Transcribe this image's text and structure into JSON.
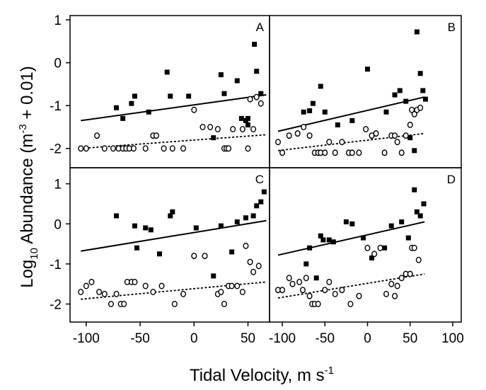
{
  "figure": {
    "xlabel": "Tidal Velocity, m s",
    "xlabel_sup": "-1",
    "ylabel_log": "Log",
    "ylabel_sub": "10",
    "ylabel_rest": " Abundance (m",
    "ylabel_sup": "-3",
    "ylabel_end": " + 0.01)",
    "x_ticks": [
      "-100",
      "-50",
      "0",
      "50",
      "100"
    ],
    "y_ticks_top": [
      "1",
      "0",
      "-1",
      "-2"
    ],
    "y_ticks_bottom": [
      "1",
      "0",
      "-1",
      "-2"
    ]
  },
  "chart_data": [
    {
      "type": "scatter",
      "panel": "A",
      "xlim": [
        -115,
        70
      ],
      "ylim": [
        -2.45,
        1.1
      ],
      "series": [
        {
          "marker": "filled-square",
          "color": "#000000",
          "x": [
            -72,
            -66,
            -58,
            -55,
            -42,
            -25,
            -22,
            -5,
            25,
            28,
            40,
            44,
            48,
            50,
            56,
            58,
            62,
            18,
            50
          ],
          "y": [
            -1.05,
            -1.3,
            -0.95,
            -0.78,
            -1.15,
            -0.22,
            -0.78,
            -0.78,
            -0.28,
            -0.72,
            -0.42,
            -1.3,
            -1.35,
            -1.3,
            0.43,
            -0.2,
            -0.72,
            -1.75,
            -1.45
          ]
        },
        {
          "marker": "open-circle",
          "color": "#000000",
          "x": [
            -105,
            -100,
            -90,
            -83,
            -75,
            -70,
            -66,
            -63,
            -60,
            -56,
            -45,
            -38,
            -35,
            -28,
            -20,
            -10,
            0,
            8,
            15,
            22,
            28,
            30,
            32,
            36,
            45,
            50,
            52,
            55,
            58,
            62
          ],
          "y": [
            -2,
            -2,
            -1.7,
            -2,
            -2,
            -2,
            -2,
            -2,
            -2,
            -2,
            -2,
            -1.7,
            -1.7,
            -2,
            -2,
            -2,
            -1.1,
            -1.5,
            -1.5,
            -1.55,
            -2,
            -2,
            -2,
            -1.55,
            -1.55,
            -2,
            -0.85,
            -1.55,
            -0.8,
            -0.95
          ]
        },
        {
          "line": "solid",
          "color": "#000000",
          "x": [
            -105,
            67
          ],
          "y": [
            -1.35,
            -0.75
          ]
        },
        {
          "line": "dotted",
          "color": "#000000",
          "x": [
            -105,
            67
          ],
          "y": [
            -2.0,
            -1.68
          ]
        }
      ]
    },
    {
      "type": "scatter",
      "panel": "B",
      "xlim": [
        -115,
        110
      ],
      "ylim": [
        -2.45,
        1.1
      ],
      "series": [
        {
          "marker": "filled-square",
          "color": "#000000",
          "x": [
            -75,
            -68,
            -64,
            -55,
            -50,
            -35,
            -18,
            0,
            22,
            32,
            38,
            45,
            50,
            55,
            58,
            62,
            65,
            68
          ],
          "y": [
            -1.15,
            -1.12,
            -0.95,
            -0.55,
            -1.15,
            -1.45,
            -1.35,
            -0.15,
            -1.15,
            -0.75,
            -0.65,
            -0.9,
            -1.75,
            -2.05,
            0.72,
            -0.25,
            -0.65,
            -0.85
          ]
        },
        {
          "marker": "open-circle",
          "color": "#000000",
          "x": [
            -105,
            -100,
            -92,
            -82,
            -75,
            -68,
            -62,
            -58,
            -55,
            -50,
            -45,
            -38,
            -30,
            -22,
            -18,
            -10,
            -2,
            5,
            10,
            20,
            28,
            32,
            35,
            40,
            45,
            50,
            52,
            55,
            58,
            62
          ],
          "y": [
            -1.85,
            -2.1,
            -1.7,
            -1.65,
            -1.5,
            -1.7,
            -2.1,
            -2.1,
            -2.1,
            -2.1,
            -1.85,
            -2.1,
            -1.85,
            -2.1,
            -2.1,
            -2.1,
            -1.55,
            -1.7,
            -1.65,
            -2.1,
            -1.7,
            -1.7,
            -1.85,
            -2.1,
            -1.7,
            -1.45,
            -1.1,
            -1.2,
            -1.1,
            -1.05
          ]
        },
        {
          "line": "solid",
          "color": "#000000",
          "x": [
            -105,
            67
          ],
          "y": [
            -1.6,
            -0.8
          ]
        },
        {
          "line": "dotted",
          "color": "#000000",
          "x": [
            -105,
            67
          ],
          "y": [
            -2.05,
            -1.65
          ]
        }
      ]
    },
    {
      "type": "scatter",
      "panel": "C",
      "xlim": [
        -115,
        70
      ],
      "ylim": [
        -2.45,
        1.4
      ],
      "series": [
        {
          "marker": "filled-square",
          "color": "#000000",
          "x": [
            -72,
            -55,
            -53,
            -45,
            -40,
            -32,
            -22,
            -20,
            2,
            18,
            25,
            35,
            40,
            48,
            55,
            58,
            62,
            65
          ],
          "y": [
            0.2,
            -0.05,
            -0.6,
            -0.1,
            -0.15,
            -0.75,
            0.2,
            0.3,
            -0.1,
            -1.3,
            -0.05,
            -0.7,
            0.05,
            0.15,
            0.2,
            0.45,
            0.55,
            0.8
          ]
        },
        {
          "marker": "open-circle",
          "color": "#000000",
          "x": [
            -105,
            -100,
            -95,
            -88,
            -83,
            -77,
            -72,
            -68,
            -65,
            -62,
            -58,
            -55,
            -45,
            -38,
            -30,
            -18,
            -10,
            0,
            10,
            22,
            25,
            28,
            32,
            35,
            40,
            45,
            48,
            52,
            55,
            60
          ],
          "y": [
            -1.7,
            -1.55,
            -1.45,
            -1.7,
            -1.75,
            -2,
            -1.75,
            -2,
            -2,
            -1.45,
            -1.45,
            -1.45,
            -1.55,
            -1.7,
            -1.55,
            -2,
            -1.75,
            -0.8,
            -0.8,
            -1.75,
            -1.7,
            -2,
            -1.55,
            -1.55,
            -1.55,
            -1.7,
            -0.55,
            -0.95,
            -1.2,
            -1.05
          ]
        },
        {
          "line": "solid",
          "color": "#000000",
          "x": [
            -105,
            67
          ],
          "y": [
            -0.68,
            0.08
          ]
        },
        {
          "line": "dotted",
          "color": "#000000",
          "x": [
            -105,
            67
          ],
          "y": [
            -1.88,
            -1.45
          ]
        }
      ]
    },
    {
      "type": "scatter",
      "panel": "D",
      "xlim": [
        -115,
        110
      ],
      "ylim": [
        -2.45,
        1.4
      ],
      "series": [
        {
          "marker": "filled-square",
          "color": "#000000",
          "x": [
            -72,
            -68,
            -60,
            -55,
            -52,
            -45,
            -40,
            -25,
            -18,
            -5,
            5,
            20,
            28,
            40,
            48,
            55,
            58,
            62,
            66
          ],
          "y": [
            -1.0,
            -0.6,
            -1.35,
            -0.3,
            -0.4,
            -0.4,
            -0.45,
            0.05,
            0.0,
            -0.35,
            -0.85,
            -0.6,
            -0.05,
            0.05,
            -0.35,
            0.85,
            0.3,
            0.2,
            0.5
          ]
        },
        {
          "marker": "open-circle",
          "color": "#000000",
          "x": [
            -105,
            -100,
            -92,
            -88,
            -80,
            -76,
            -72,
            -68,
            -65,
            -62,
            -58,
            -50,
            -45,
            -38,
            -30,
            -20,
            -10,
            0,
            8,
            15,
            22,
            28,
            32,
            35,
            40,
            45,
            50,
            52,
            55,
            60
          ],
          "y": [
            -1.65,
            -1.65,
            -1.35,
            -1.5,
            -1.45,
            -1.65,
            -1.35,
            -1.8,
            -2.0,
            -2.0,
            -2.0,
            -1.65,
            -1.45,
            -1.75,
            -1.65,
            -2.0,
            -1.8,
            -0.6,
            -0.75,
            -0.6,
            -1.75,
            -1.5,
            -1.8,
            -1.55,
            -1.35,
            -1.25,
            -1.25,
            -0.6,
            -0.6,
            -0.9
          ]
        },
        {
          "line": "solid",
          "color": "#000000",
          "x": [
            -105,
            67
          ],
          "y": [
            -0.78,
            0.05
          ]
        },
        {
          "line": "dotted",
          "color": "#000000",
          "x": [
            -105,
            67
          ],
          "y": [
            -1.85,
            -1.25
          ]
        }
      ]
    }
  ]
}
